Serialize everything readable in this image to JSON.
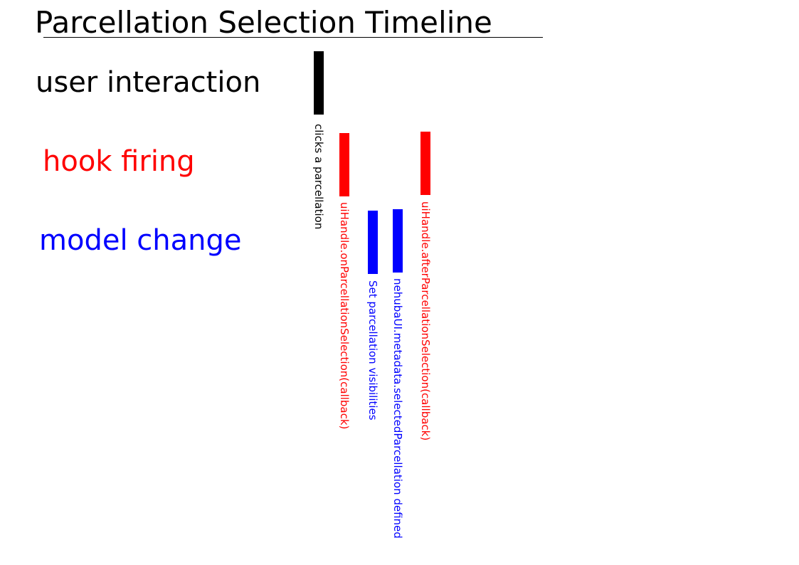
{
  "title": "Parcellation Selection Timeline",
  "colors": {
    "user_interaction": "#000000",
    "hook_firing": "#ff0000",
    "model_change": "#0000ff"
  },
  "rows": {
    "user_interaction": "user interaction",
    "hook_firing": "hook firing",
    "model_change": "model change"
  },
  "events": [
    {
      "label": "clicks a parcellation",
      "row": "user_interaction"
    },
    {
      "label": "uiHandle.onParcellationSelection(callback)",
      "row": "hook_firing"
    },
    {
      "label": "Set parcellation visibilities",
      "row": "model_change"
    },
    {
      "label": "nehubaUI.metadata.selectedParcellation defined",
      "row": "model_change"
    },
    {
      "label": "uiHandle.afterParcellationSelection(callback)",
      "row": "hook_firing"
    }
  ]
}
